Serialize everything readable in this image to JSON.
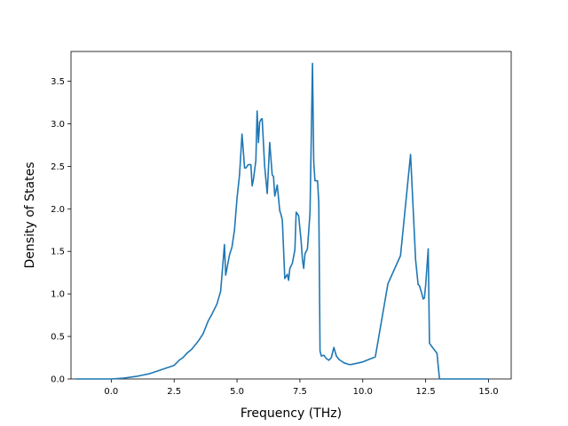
{
  "chart_data": {
    "type": "line",
    "xlabel": "Frequency (THz)",
    "ylabel": "Density of States",
    "xlim": [
      -1.6,
      15.9
    ],
    "ylim": [
      0,
      3.85
    ],
    "x_ticks": [
      0.0,
      2.5,
      5.0,
      7.5,
      10.0,
      12.5,
      15.0
    ],
    "x_tick_labels": [
      "0.0",
      "2.5",
      "5.0",
      "7.5",
      "10.0",
      "12.5",
      "15.0"
    ],
    "y_ticks": [
      0.0,
      0.5,
      1.0,
      1.5,
      2.0,
      2.5,
      3.0,
      3.5
    ],
    "y_tick_labels": [
      "0.0",
      "0.5",
      "1.0",
      "1.5",
      "2.0",
      "2.5",
      "3.0",
      "3.5"
    ],
    "grid": false,
    "legend": "none",
    "line_color": "#1f77b4",
    "series": [
      {
        "x": [
          -1.4,
          -0.5,
          0.0,
          0.5,
          1.0,
          1.5,
          2.0,
          2.5,
          2.7,
          2.85,
          3.0,
          3.2,
          3.45,
          3.65,
          3.85,
          4.0,
          4.2,
          4.35,
          4.5,
          4.55,
          4.7,
          4.8,
          4.9,
          5.0,
          5.1,
          5.2,
          5.3,
          5.35,
          5.45,
          5.55,
          5.6,
          5.65,
          5.75,
          5.8,
          5.85,
          5.9,
          5.95,
          6.0,
          6.1,
          6.2,
          6.3,
          6.4,
          6.45,
          6.5,
          6.6,
          6.7,
          6.75,
          6.8,
          6.9,
          7.0,
          7.05,
          7.1,
          7.2,
          7.3,
          7.35,
          7.45,
          7.55,
          7.6,
          7.65,
          7.7,
          7.8,
          7.9,
          8.0,
          8.05,
          8.1,
          8.2,
          8.25,
          8.3,
          8.35,
          8.45,
          8.55,
          8.65,
          8.75,
          8.85,
          8.95,
          9.05,
          9.15,
          9.25,
          9.35,
          9.45,
          9.55,
          9.7,
          10.0,
          10.5,
          11.0,
          11.5,
          11.9,
          12.1,
          12.2,
          12.25,
          12.35,
          12.4,
          12.45,
          12.5,
          12.6,
          12.65,
          12.75,
          12.85,
          12.95,
          13.05,
          13.1,
          13.15,
          13.2,
          13.4,
          13.6,
          13.7,
          13.8,
          14.0,
          14.5,
          15.0
        ],
        "y": [
          0.0,
          0.0,
          0.0,
          0.01,
          0.03,
          0.06,
          0.11,
          0.16,
          0.22,
          0.25,
          0.3,
          0.35,
          0.44,
          0.53,
          0.68,
          0.76,
          0.88,
          1.03,
          1.58,
          1.22,
          1.46,
          1.55,
          1.75,
          2.13,
          2.4,
          2.88,
          2.48,
          2.48,
          2.52,
          2.52,
          2.27,
          2.34,
          2.57,
          3.15,
          2.78,
          3.02,
          3.05,
          3.06,
          2.5,
          2.18,
          2.78,
          2.4,
          2.38,
          2.15,
          2.28,
          1.98,
          1.93,
          1.87,
          1.18,
          1.23,
          1.16,
          1.3,
          1.36,
          1.52,
          1.96,
          1.92,
          1.62,
          1.4,
          1.3,
          1.47,
          1.53,
          1.95,
          3.71,
          2.55,
          2.33,
          2.33,
          2.07,
          0.33,
          0.27,
          0.28,
          0.24,
          0.22,
          0.25,
          0.37,
          0.27,
          0.23,
          0.21,
          0.19,
          0.18,
          0.17,
          0.17,
          0.18,
          0.2,
          0.26,
          1.12,
          1.45,
          2.64,
          1.4,
          1.11,
          1.1,
          1.0,
          0.94,
          0.95,
          1.1,
          1.53,
          0.42,
          0.38,
          0.34,
          0.3,
          0.0,
          0.0,
          0.0,
          0.0,
          0.0,
          0.0,
          0.0,
          0.0,
          0.0,
          0.0,
          0.0
        ]
      }
    ]
  }
}
